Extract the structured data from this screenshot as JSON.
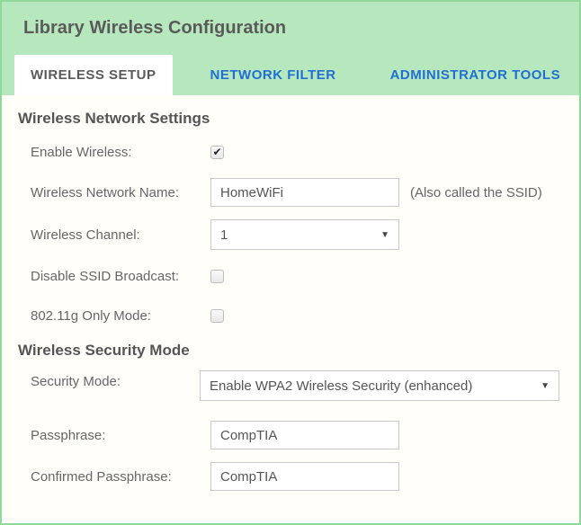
{
  "colors": {
    "panel_border": "#8fd89a",
    "panel_bg": "#b7e8bd",
    "content_bg": "#fffef9",
    "active_tab_text": "#5a5a5a",
    "inactive_tab_text": "#1f6fd4",
    "label_text": "#666666",
    "input_border": "#c9c9c9"
  },
  "header": {
    "title": "Library Wireless Configuration"
  },
  "tabs": {
    "setup": "WIRELESS SETUP",
    "filter": "NETWORK FILTER",
    "admin": "ADMINISTRATOR TOOLS",
    "active": "setup"
  },
  "network_settings": {
    "section_title": "Wireless Network Settings",
    "enable_label": "Enable Wireless:",
    "enable_checked": true,
    "name_label": "Wireless Network Name:",
    "name_value": "HomeWiFi",
    "name_hint": "(Also called the SSID)",
    "channel_label": "Wireless Channel:",
    "channel_value": "1",
    "disable_ssid_label": "Disable SSID Broadcast:",
    "disable_ssid_checked": false,
    "gonly_label": "802.11g Only Mode:",
    "gonly_checked": false
  },
  "security": {
    "section_title": "Wireless Security Mode",
    "mode_label": "Security Mode:",
    "mode_value": "Enable WPA2 Wireless Security (enhanced)",
    "pass_label": "Passphrase:",
    "pass_value": "CompTIA",
    "confirm_label": "Confirmed Passphrase:",
    "confirm_value": "CompTIA"
  }
}
